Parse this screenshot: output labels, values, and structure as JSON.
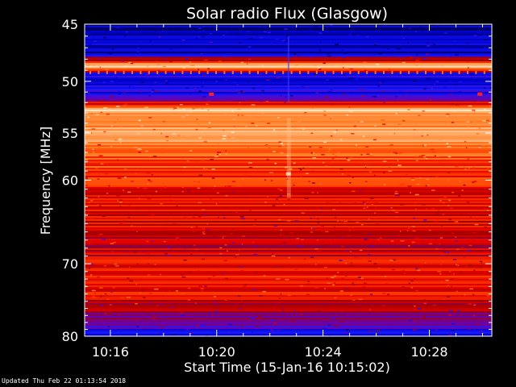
{
  "chart_data": {
    "type": "heatmap",
    "title": "Solar radio Flux (Glasgow)",
    "xlabel": "Start Time (15-Jan-16 10:15:02)",
    "ylabel": "Frequency [MHz]",
    "x_range_minutes": [
      10.15,
      10.507
    ],
    "x_ticks": [
      {
        "label": "10:16",
        "value": 16
      },
      {
        "label": "10:20",
        "value": 20
      },
      {
        "label": "10:24",
        "value": 24
      },
      {
        "label": "10:28",
        "value": 28
      }
    ],
    "y_scale": "log",
    "ylim": [
      45,
      80
    ],
    "y_ticks": [
      {
        "label": "45",
        "value": 45
      },
      {
        "label": "50",
        "value": 50
      },
      {
        "label": "55",
        "value": 55
      },
      {
        "label": "60",
        "value": 60
      },
      {
        "label": "70",
        "value": 70
      },
      {
        "label": "80",
        "value": 80
      }
    ],
    "colormap": [
      "#000060",
      "#0000c8",
      "#1a1aff",
      "#6a00b0",
      "#a00000",
      "#e00000",
      "#ff3a00",
      "#ff7a20",
      "#ffb070",
      "#ffe8c0"
    ],
    "intensity_by_frequency": [
      {
        "freq": 45.0,
        "level": 0.05
      },
      {
        "freq": 46.0,
        "level": 0.1
      },
      {
        "freq": 47.5,
        "level": 0.12
      },
      {
        "freq": 48.6,
        "level": 0.95
      },
      {
        "freq": 49.2,
        "level": 0.2
      },
      {
        "freq": 50.5,
        "level": 0.15
      },
      {
        "freq": 51.5,
        "level": 0.3
      },
      {
        "freq": 52.6,
        "level": 0.9
      },
      {
        "freq": 54.0,
        "level": 0.8
      },
      {
        "freq": 55.0,
        "level": 0.85
      },
      {
        "freq": 57.0,
        "level": 0.72
      },
      {
        "freq": 60.0,
        "level": 0.62
      },
      {
        "freq": 64.0,
        "level": 0.55
      },
      {
        "freq": 68.0,
        "level": 0.5
      },
      {
        "freq": 72.0,
        "level": 0.6
      },
      {
        "freq": 74.0,
        "level": 0.55
      },
      {
        "freq": 77.0,
        "level": 0.4
      },
      {
        "freq": 79.0,
        "level": 0.25
      },
      {
        "freq": 80.0,
        "level": 0.15
      }
    ],
    "features": [
      {
        "type": "vertical-streak",
        "time_minutes": 22.7
      },
      {
        "type": "spot",
        "time_minutes": 22.7,
        "freq": 59.3
      },
      {
        "type": "spot",
        "time_minutes": 19.8,
        "freq": 51.2
      },
      {
        "type": "spot",
        "time_minutes": 29.9,
        "freq": 51.2
      }
    ]
  },
  "footer": {
    "updated": "Updated Thu Feb 22 01:13:54 2018"
  }
}
